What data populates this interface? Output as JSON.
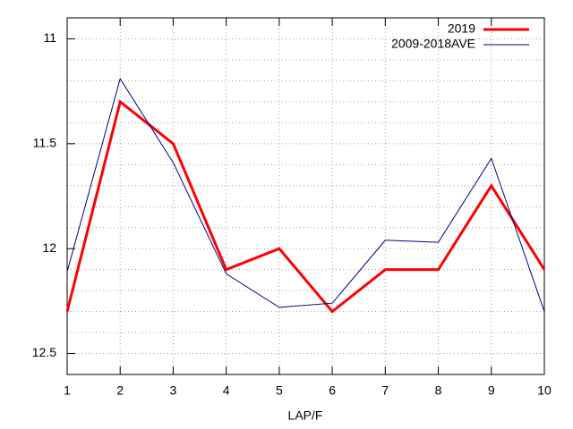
{
  "chart_data": {
    "type": "line",
    "x_label": "LAP/F",
    "x": [
      1,
      2,
      3,
      4,
      5,
      6,
      7,
      8,
      9,
      10
    ],
    "series": [
      {
        "name": "2019",
        "color": "#ff0000",
        "width": 3,
        "values": [
          12.3,
          11.3,
          11.5,
          12.1,
          12.0,
          12.3,
          12.1,
          12.1,
          11.7,
          12.1
        ]
      },
      {
        "name": "2009-2018AVE",
        "color": "#000080",
        "width": 1,
        "values": [
          12.11,
          11.19,
          11.59,
          12.12,
          12.28,
          12.26,
          11.96,
          11.97,
          11.57,
          12.3
        ]
      }
    ],
    "xlim": [
      1,
      10
    ],
    "xticks": [
      1,
      2,
      3,
      4,
      5,
      6,
      7,
      8,
      9,
      10
    ],
    "ylim": [
      10.9,
      12.6
    ],
    "y_reversed": true,
    "yticks": [
      11,
      11.5,
      12,
      12.5
    ],
    "y_minor_grid": [
      11.1,
      11.2,
      11.3,
      11.4,
      11.6,
      11.7,
      11.8,
      11.9,
      12.1,
      12.2,
      12.3,
      12.4
    ],
    "grid": true,
    "legend": "top-right"
  }
}
